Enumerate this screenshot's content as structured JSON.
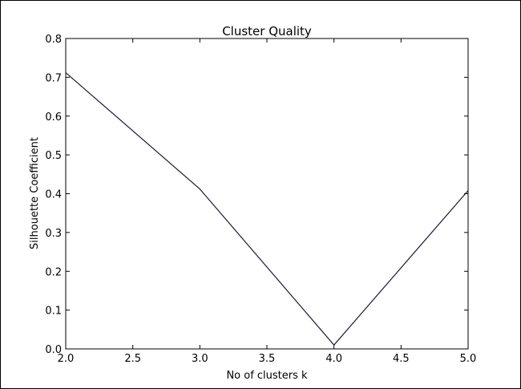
{
  "chart_data": {
    "type": "line",
    "title": "Cluster Quality",
    "xlabel": "No of clusters k",
    "ylabel": "Silhouette Coefficient",
    "xlim": [
      2.0,
      5.0
    ],
    "ylim": [
      0.0,
      0.8
    ],
    "xticks": [
      "2.0",
      "2.5",
      "3.0",
      "3.5",
      "4.0",
      "4.5",
      "5.0"
    ],
    "yticks": [
      "0.0",
      "0.1",
      "0.2",
      "0.3",
      "0.4",
      "0.5",
      "0.6",
      "0.7",
      "0.8"
    ],
    "grid": false,
    "series": [
      {
        "x": [
          2,
          3,
          4,
          5
        ],
        "y": [
          0.712,
          0.412,
          0.01,
          0.408
        ],
        "color": "#1b1b3a"
      }
    ]
  }
}
